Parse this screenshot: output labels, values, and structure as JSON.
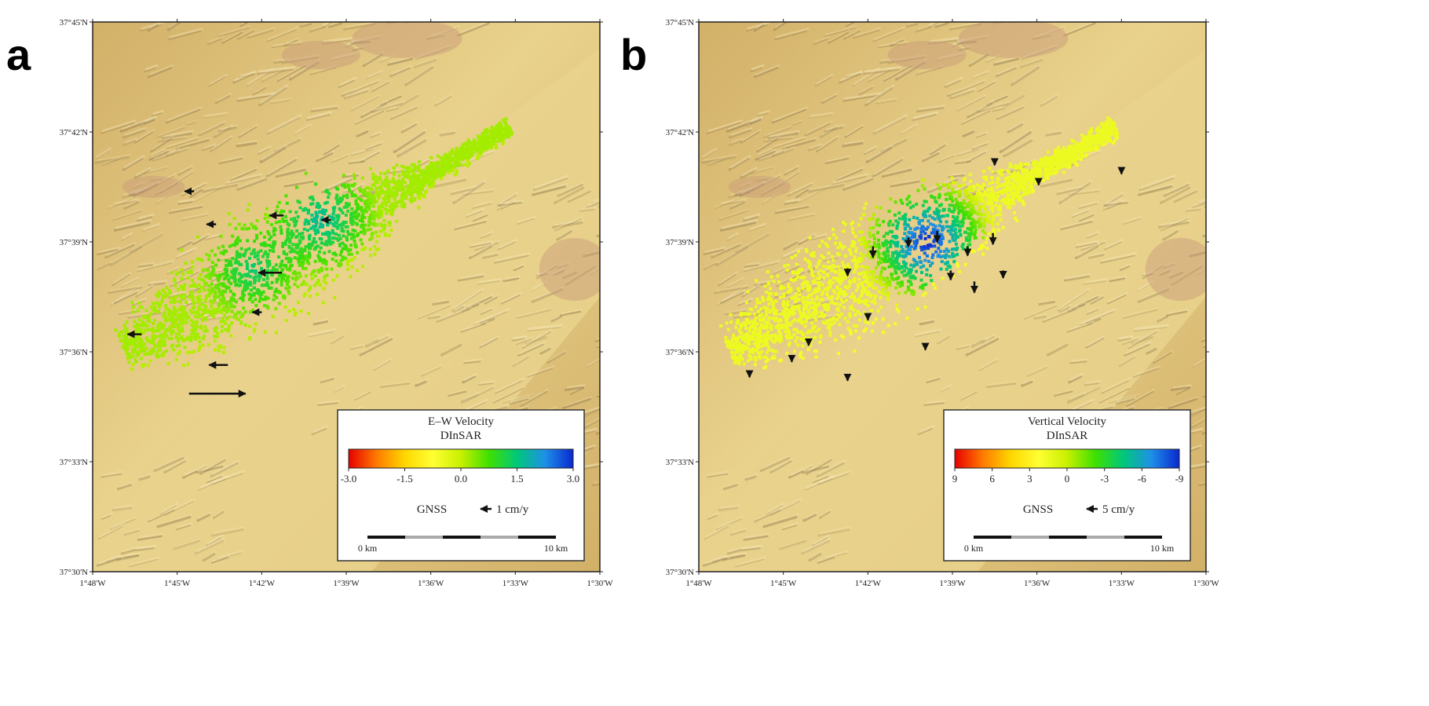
{
  "panels": [
    {
      "letter": "a",
      "legend": {
        "title": "E–W Velocity",
        "subtitle": "DInSAR",
        "ticks": [
          "-3.0",
          "-1.5",
          "0.0",
          "1.5",
          "3.0"
        ],
        "tick_values": [
          -3.0,
          -1.5,
          0.0,
          1.5,
          3.0
        ],
        "range": [
          -3.0,
          3.0
        ],
        "gnss_label": "GNSS",
        "gnss_scale_label": "1 cm/y",
        "scalebar_start": "0 km",
        "scalebar_end": "10 km"
      },
      "gnss_arrows": [
        {
          "lon": -1.74,
          "lat": 37.673,
          "dir": 180,
          "len": 1.0
        },
        {
          "lon": -1.727,
          "lat": 37.658,
          "dir": 180,
          "len": 1.0
        },
        {
          "lon": -1.687,
          "lat": 37.662,
          "dir": 180,
          "len": 1.5
        },
        {
          "lon": -1.659,
          "lat": 37.66,
          "dir": 180,
          "len": 1.0
        },
        {
          "lon": -1.688,
          "lat": 37.636,
          "dir": 180,
          "len": 2.5
        },
        {
          "lon": -1.7,
          "lat": 37.618,
          "dir": 180,
          "len": 1.0
        },
        {
          "lon": -1.771,
          "lat": 37.608,
          "dir": 180,
          "len": 1.5
        },
        {
          "lon": -1.72,
          "lat": 37.594,
          "dir": 180,
          "len": 2.0
        },
        {
          "lon": -1.743,
          "lat": 37.581,
          "dir": 0,
          "len": 6.0
        }
      ]
    },
    {
      "letter": "b",
      "legend": {
        "title": "Vertical Velocity",
        "subtitle": "DInSAR",
        "ticks": [
          "9",
          "6",
          "3",
          "0",
          "-3",
          "-6",
          "-9"
        ],
        "tick_values": [
          9,
          6,
          3,
          0,
          -3,
          -6,
          -9
        ],
        "range": [
          9,
          -9
        ],
        "gnss_label": "GNSS",
        "gnss_scale_label": "5 cm/y",
        "scalebar_start": "0 km",
        "scalebar_end": "10 km"
      },
      "gnss_arrows": [
        {
          "lon": -1.625,
          "lat": 37.687,
          "dir": 270,
          "len": 0.5
        },
        {
          "lon": -1.599,
          "lat": 37.678,
          "dir": 270,
          "len": 0.5
        },
        {
          "lon": -1.55,
          "lat": 37.683,
          "dir": 270,
          "len": 0.5
        },
        {
          "lon": -1.697,
          "lat": 37.648,
          "dir": 270,
          "len": 1.2
        },
        {
          "lon": -1.676,
          "lat": 37.652,
          "dir": 270,
          "len": 1.0
        },
        {
          "lon": -1.659,
          "lat": 37.655,
          "dir": 270,
          "len": 1.2
        },
        {
          "lon": -1.641,
          "lat": 37.648,
          "dir": 270,
          "len": 1.0
        },
        {
          "lon": -1.626,
          "lat": 37.654,
          "dir": 270,
          "len": 1.2
        },
        {
          "lon": -1.651,
          "lat": 37.637,
          "dir": 270,
          "len": 1.0
        },
        {
          "lon": -1.637,
          "lat": 37.632,
          "dir": 270,
          "len": 1.2
        },
        {
          "lon": -1.62,
          "lat": 37.637,
          "dir": 270,
          "len": 0.8
        },
        {
          "lon": -1.712,
          "lat": 37.638,
          "dir": 270,
          "len": 0.8
        },
        {
          "lon": -1.7,
          "lat": 37.617,
          "dir": 270,
          "len": 0.6
        },
        {
          "lon": -1.735,
          "lat": 37.605,
          "dir": 270,
          "len": 0.5
        },
        {
          "lon": -1.666,
          "lat": 37.603,
          "dir": 270,
          "len": 0.5
        },
        {
          "lon": -1.77,
          "lat": 37.591,
          "dir": 270,
          "len": 0.6
        },
        {
          "lon": -1.745,
          "lat": 37.598,
          "dir": 270,
          "len": 0.6
        },
        {
          "lon": -1.712,
          "lat": 37.589,
          "dir": 270,
          "len": 0.5
        }
      ]
    }
  ],
  "map_axes": {
    "lat_ticks": [
      "37°45'N",
      "37°42'N",
      "37°39'N",
      "37°36'N",
      "37°33'N",
      "37°30'N"
    ],
    "lat_values": [
      37.75,
      37.7,
      37.65,
      37.6,
      37.55,
      37.5
    ],
    "lon_ticks": [
      "1°48'W",
      "1°45'W",
      "1°42'W",
      "1°39'W",
      "1°36'W",
      "1°33'W",
      "1°30'W"
    ],
    "lon_values": [
      -1.8,
      -1.75,
      -1.7,
      -1.65,
      -1.6,
      -1.55,
      -1.5
    ],
    "lon_range": [
      -1.8,
      -1.5
    ],
    "lat_range": [
      37.5,
      37.75
    ]
  },
  "colormap": [
    "#e60000",
    "#ff7a00",
    "#ffd700",
    "#ffff33",
    "#c8f000",
    "#3fe000",
    "#00c87a",
    "#1e90e8",
    "#0a28d0"
  ],
  "terrain_colors": {
    "plain": "#e9d28c",
    "highland": "#d2b068",
    "peak": "#c79a7a",
    "shadow": "#8a7348"
  }
}
